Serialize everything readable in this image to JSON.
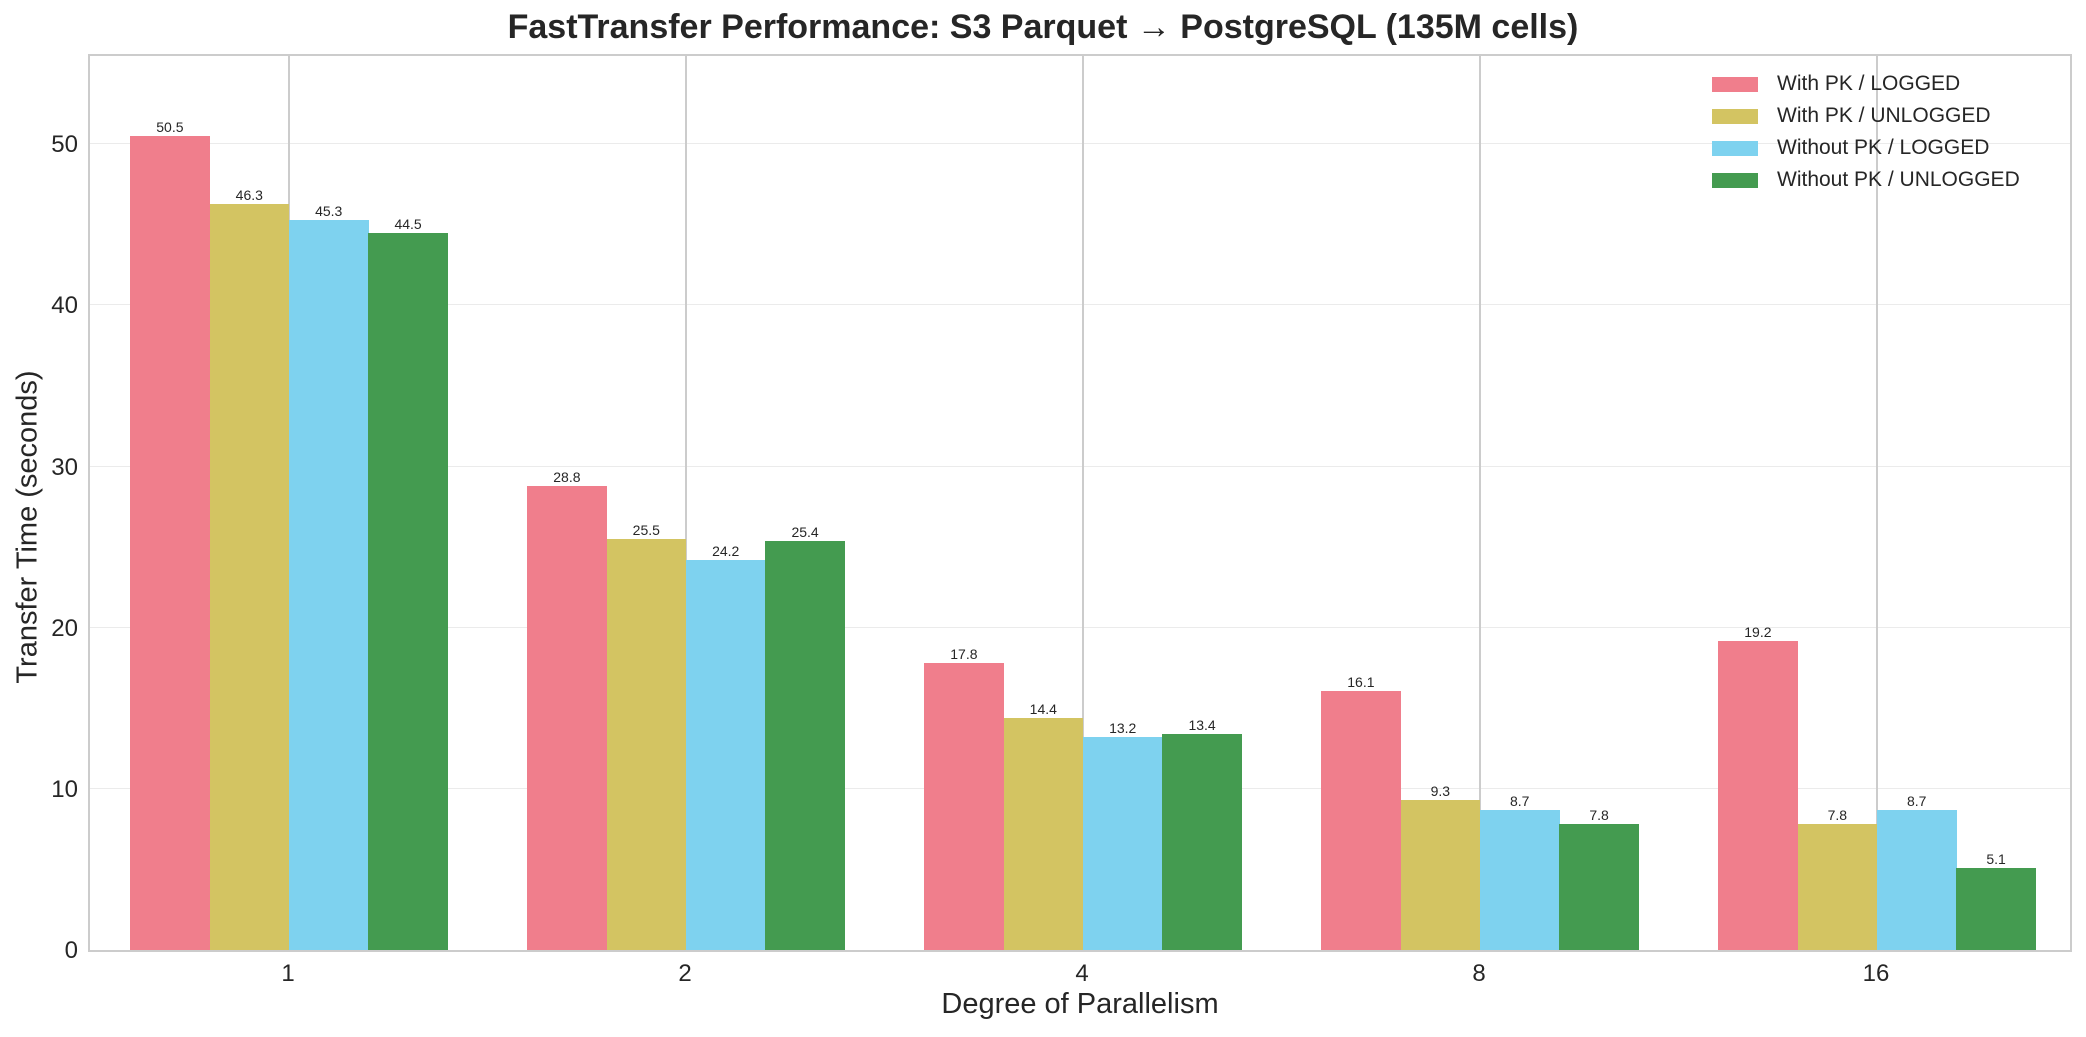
{
  "chart_data": {
    "type": "bar",
    "title": "FastTransfer Performance: S3 Parquet → PostgreSQL (135M cells)",
    "xlabel": "Degree of Parallelism",
    "ylabel": "Transfer Time (seconds)",
    "categories": [
      "1",
      "2",
      "4",
      "8",
      "16"
    ],
    "series": [
      {
        "name": "With PK / LOGGED",
        "color": "#F07E8C",
        "values": [
          50.5,
          28.8,
          17.8,
          16.1,
          19.2
        ]
      },
      {
        "name": "With PK / UNLOGGED",
        "color": "#D3C462",
        "values": [
          46.3,
          25.5,
          14.4,
          9.3,
          7.8
        ]
      },
      {
        "name": "Without PK / LOGGED",
        "color": "#7ED2EF",
        "values": [
          45.3,
          24.2,
          13.2,
          8.7,
          8.7
        ]
      },
      {
        "name": "Without PK / UNLOGGED",
        "color": "#449B50",
        "values": [
          44.5,
          25.4,
          13.4,
          7.8,
          5.1
        ]
      }
    ],
    "yticks": [
      0,
      10,
      20,
      30,
      40,
      50
    ],
    "ylim": [
      0,
      55.6
    ],
    "grid": true,
    "legend_position": "upper right",
    "bar_value_labels": true
  }
}
